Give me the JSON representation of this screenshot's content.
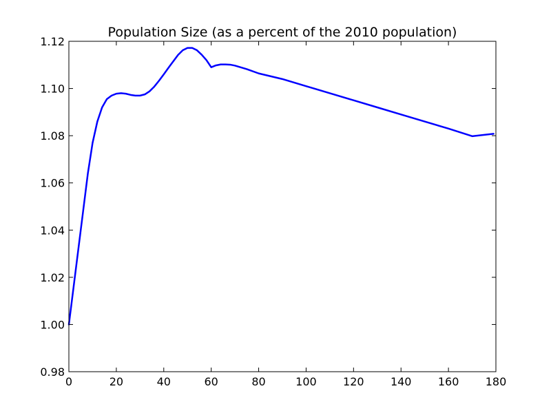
{
  "chart_data": {
    "type": "line",
    "title": "Population Size (as a percent of the 2010 population)",
    "xlabel": "",
    "ylabel": "",
    "xlim": [
      0,
      180
    ],
    "ylim": [
      0.98,
      1.12
    ],
    "x_ticks": [
      0,
      20,
      40,
      60,
      80,
      100,
      120,
      140,
      160,
      180
    ],
    "y_ticks": [
      0.98,
      1.0,
      1.02,
      1.04,
      1.06,
      1.08,
      1.1,
      1.12
    ],
    "x_tick_labels": [
      "0",
      "20",
      "40",
      "60",
      "80",
      "100",
      "120",
      "140",
      "160",
      "180"
    ],
    "y_tick_labels": [
      "0.98",
      "1.00",
      "1.02",
      "1.04",
      "1.06",
      "1.08",
      "1.10",
      "1.12"
    ],
    "grid": false,
    "series": [
      {
        "color": "#0000ff",
        "x": [
          0,
          2,
          4,
          6,
          8,
          10,
          12,
          14,
          16,
          18,
          20,
          22,
          24,
          26,
          28,
          30,
          32,
          34,
          36,
          38,
          40,
          42,
          44,
          46,
          48,
          50,
          52,
          54,
          56,
          58,
          60,
          62,
          64,
          66,
          68,
          70,
          75,
          80,
          85,
          90,
          100,
          110,
          120,
          130,
          140,
          150,
          160,
          170,
          179
        ],
        "y": [
          1.0,
          1.016,
          1.032,
          1.048,
          1.064,
          1.077,
          1.086,
          1.092,
          1.0955,
          1.097,
          1.0978,
          1.098,
          1.0978,
          1.0973,
          1.097,
          1.097,
          1.0975,
          1.0988,
          1.1008,
          1.1033,
          1.106,
          1.1088,
          1.1115,
          1.1142,
          1.1162,
          1.1172,
          1.1172,
          1.1162,
          1.1143,
          1.112,
          1.109,
          1.1098,
          1.1102,
          1.1102,
          1.1101,
          1.1097,
          1.1082,
          1.1064,
          1.1052,
          1.104,
          1.101,
          1.098,
          1.095,
          1.092,
          1.089,
          1.086,
          1.083,
          1.0798,
          1.0808
        ]
      }
    ]
  },
  "colors": {
    "line": "#0000ff",
    "axes": "#000000",
    "background": "#ffffff"
  }
}
